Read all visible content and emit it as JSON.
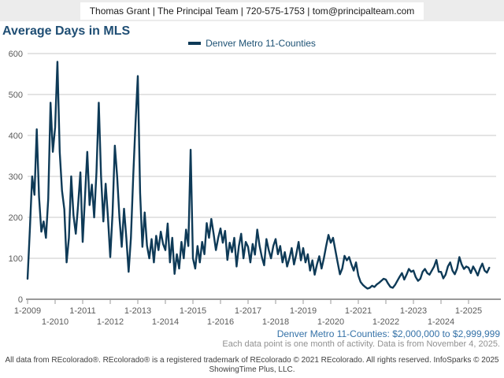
{
  "header": {
    "contact_line": "Thomas Grant | The Principal Team | 720-575-1753 | tom@principalteam.com"
  },
  "title": "Average Days in MLS",
  "legend": {
    "series_label": "Denver Metro 11-Counties"
  },
  "footnotes": {
    "series_filter": "Denver Metro 11-Counties: $2,000,000 to $2,999,999",
    "data_note": "Each data point is one month of activity. Data is from November 4, 2025.",
    "copyright_line1": "All data from REcolorado®. REcolorado® is a registered trademark of REcolorado © 2021 REcolorado. All rights reserved. InfoSparks © 2025",
    "copyright_line2": "ShowingTime Plus, LLC."
  },
  "colors": {
    "line": "#0e3a57",
    "title_text": "#1f4e74",
    "legend_text": "#1d5174",
    "filter_text": "#3572a8",
    "note_text": "#919191",
    "grid": "#c9c9c9",
    "axis": "#999999",
    "tick_text": "#5a5a5a",
    "header_bg": "#ececec"
  },
  "chart_data": {
    "type": "line",
    "title": "Average Days in MLS",
    "x_start": "2009-01",
    "x_end": "2025-10",
    "x_tick_labels": [
      "1-2009",
      "1-2010",
      "1-2011",
      "1-2012",
      "1-2013",
      "1-2014",
      "1-2015",
      "1-2016",
      "1-2017",
      "1-2018",
      "1-2019",
      "1-2020",
      "1-2021",
      "1-2022",
      "1-2023",
      "1-2024",
      "1-2025"
    ],
    "y_ticks": [
      0,
      100,
      200,
      300,
      400,
      500,
      600
    ],
    "ylim": [
      0,
      600
    ],
    "grid": "horizontal",
    "legend_position": "top-center",
    "series": [
      {
        "name": "Denver Metro 11-Counties",
        "unit": "days",
        "cadence": "monthly",
        "values": [
          50,
          170,
          300,
          255,
          415,
          250,
          165,
          190,
          150,
          245,
          480,
          360,
          420,
          580,
          360,
          265,
          220,
          90,
          150,
          300,
          205,
          160,
          230,
          310,
          140,
          250,
          360,
          230,
          280,
          200,
          310,
          480,
          300,
          190,
          282,
          200,
          103,
          210,
          375,
          300,
          200,
          128,
          221,
          150,
          67,
          150,
          300,
          430,
          545,
          260,
          128,
          212,
          131,
          100,
          147,
          90,
          155,
          120,
          165,
          135,
          120,
          185,
          90,
          150,
          62,
          110,
          75,
          140,
          100,
          170,
          130,
          365,
          100,
          75,
          130,
          90,
          140,
          110,
          186,
          150,
          196,
          160,
          120,
          150,
          173,
          138,
          167,
          96,
          138,
          115,
          150,
          80,
          130,
          160,
          100,
          140,
          128,
          90,
          135,
          109,
          170,
          131,
          103,
          83,
          147,
          120,
          100,
          130,
          147,
          110,
          130,
          90,
          115,
          80,
          100,
          125,
          85,
          110,
          140,
          95,
          125,
          90,
          110,
          70,
          95,
          60,
          85,
          105,
          75,
          100,
          130,
          157,
          138,
          150,
          120,
          90,
          61,
          75,
          106,
          95,
          103,
          85,
          70,
          90,
          58,
          42,
          35,
          30,
          26,
          28,
          33,
          30,
          36,
          40,
          45,
          50,
          48,
          38,
          30,
          28,
          35,
          45,
          55,
          64,
          48,
          60,
          74,
          67,
          70,
          54,
          45,
          50,
          67,
          74,
          64,
          60,
          70,
          80,
          96,
          67,
          67,
          51,
          60,
          80,
          90,
          70,
          61,
          75,
          103,
          85,
          74,
          80,
          77,
          64,
          80,
          70,
          58,
          75,
          87,
          70,
          65,
          77
        ]
      }
    ]
  }
}
